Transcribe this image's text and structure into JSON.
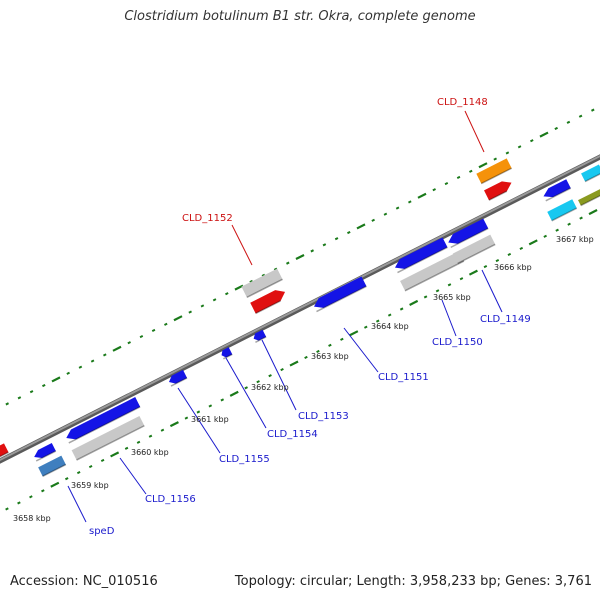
{
  "title": "Clostridium botulinum B1 str. Okra, complete genome",
  "footer": {
    "accession": "Accession: NC_010516",
    "summary": "Topology: circular; Length: 3,958,233 bp; Genes: 3,761"
  },
  "colors": {
    "backbone": "#888888",
    "tick": "#1a7a1a",
    "gene_blue": "#1414e6",
    "gene_grey": "#c8c8c8",
    "gene_red": "#e01010",
    "gene_orange": "#f5920a",
    "gene_steel": "#3f7fbf",
    "gene_cyan": "#18c8f0",
    "gene_olive": "#8a9a20",
    "label_blue": "#1a1acc",
    "label_red": "#cc1111"
  },
  "kbp_labels": [
    "3658 kbp",
    "3659 kbp",
    "3660 kbp",
    "3661 kbp",
    "3662 kbp",
    "3663 kbp",
    "3664 kbp",
    "3665 kbp",
    "3666 kbp",
    "3667 kbp"
  ],
  "gene_labels": [
    {
      "id": "speD",
      "text": "speD",
      "color": "blue"
    },
    {
      "id": "cld1156",
      "text": "CLD_1156",
      "color": "blue"
    },
    {
      "id": "cld1155",
      "text": "CLD_1155",
      "color": "blue"
    },
    {
      "id": "cld1154",
      "text": "CLD_1154",
      "color": "blue"
    },
    {
      "id": "cld1153",
      "text": "CLD_1153",
      "color": "blue"
    },
    {
      "id": "cld1151",
      "text": "CLD_1151",
      "color": "blue"
    },
    {
      "id": "cld1150",
      "text": "CLD_1150",
      "color": "blue"
    },
    {
      "id": "cld1149",
      "text": "CLD_1149",
      "color": "blue"
    },
    {
      "id": "cld1152",
      "text": "CLD_1152",
      "color": "red"
    },
    {
      "id": "cld1148",
      "text": "CLD_1148",
      "color": "red"
    }
  ]
}
